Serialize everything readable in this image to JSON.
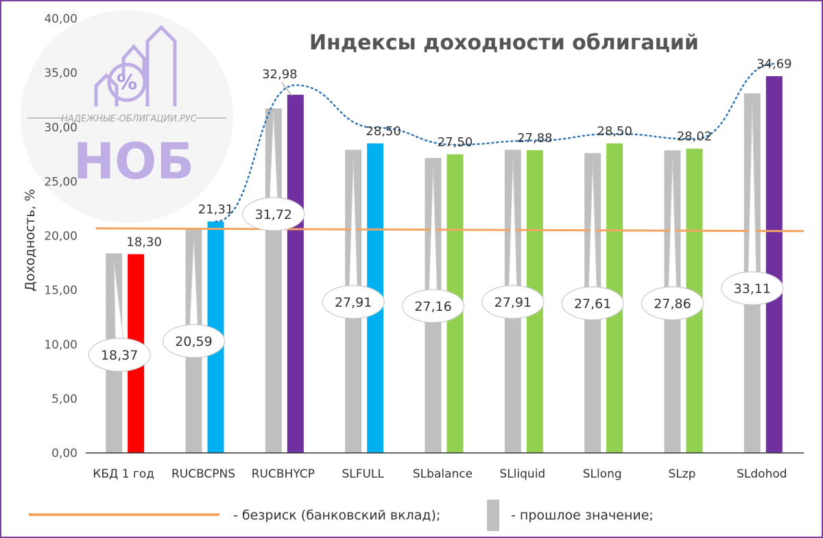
{
  "chart_data": {
    "type": "bar",
    "title": "Индексы доходности облигаций",
    "ylabel": "Доходность, %",
    "ylim": [
      0,
      40
    ],
    "yticks": [
      "0,00",
      "5,00",
      "10,00",
      "15,00",
      "20,00",
      "25,00",
      "30,00",
      "35,00",
      "40,00"
    ],
    "categories": [
      "КБД 1 год",
      "RUCBCPNS",
      "RUCBHYCP",
      "SLFULL",
      "SLbalance",
      "SLliquid",
      "SLlong",
      "SLzp",
      "SLdohod"
    ],
    "current_values": [
      18.3,
      21.31,
      32.98,
      28.5,
      27.5,
      27.88,
      28.5,
      28.02,
      34.69
    ],
    "current_labels": [
      "18,30",
      "21,31",
      "32,98",
      "28,50",
      "27,50",
      "27,88",
      "28,50",
      "28,02",
      "34,69"
    ],
    "previous_values": [
      18.37,
      20.59,
      31.72,
      27.91,
      27.16,
      27.91,
      27.61,
      27.86,
      33.11
    ],
    "previous_labels": [
      "18,37",
      "20,59",
      "31,72",
      "27,91",
      "27,16",
      "27,91",
      "27,61",
      "27,86",
      "33,11"
    ],
    "bar_colors": [
      "#ff0000",
      "#00b0f0",
      "#7030a0",
      "#00b0f0",
      "#92d050",
      "#92d050",
      "#92d050",
      "#92d050",
      "#7030a0"
    ],
    "previous_color": "#bfbfbf",
    "risk_free_value": 20.55,
    "risk_free_color": "#f4a460",
    "trend_color": "#2e75b6",
    "grid": false
  },
  "legend": {
    "risk_free_label": "- безриск (банковский вклад);",
    "previous_label": "- прошлое значение;"
  },
  "watermark": {
    "site": "НАДЕЖНЫЕ-ОБЛИГАЦИИ.РУС",
    "abbr": "НОБ",
    "percent_sign": "%"
  }
}
